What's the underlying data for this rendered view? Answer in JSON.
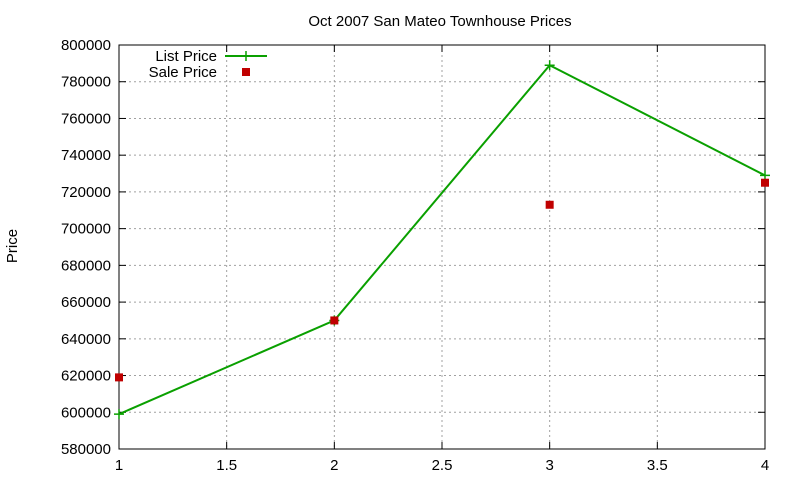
{
  "chart_data": {
    "type": "line",
    "title": "Oct 2007 San Mateo Townhouse Prices",
    "xlabel": "",
    "ylabel": "Price",
    "xlim": [
      1,
      4
    ],
    "ylim": [
      580000,
      800000
    ],
    "x_ticks": [
      1,
      1.5,
      2,
      2.5,
      3,
      3.5,
      4
    ],
    "y_ticks": [
      580000,
      600000,
      620000,
      640000,
      660000,
      680000,
      700000,
      720000,
      740000,
      760000,
      780000,
      800000
    ],
    "grid": true,
    "legend_position": "top-left",
    "series": [
      {
        "name": "List Price",
        "style": "line+cross",
        "color": "#0aa000",
        "points": [
          [
            1,
            599000
          ],
          [
            2,
            650000
          ],
          [
            3,
            789000
          ],
          [
            4,
            729000
          ]
        ]
      },
      {
        "name": "Sale Price",
        "style": "square",
        "color": "#c00000",
        "points": [
          [
            1,
            619000
          ],
          [
            2,
            650000
          ],
          [
            3,
            713000
          ],
          [
            4,
            725000
          ]
        ]
      }
    ]
  }
}
